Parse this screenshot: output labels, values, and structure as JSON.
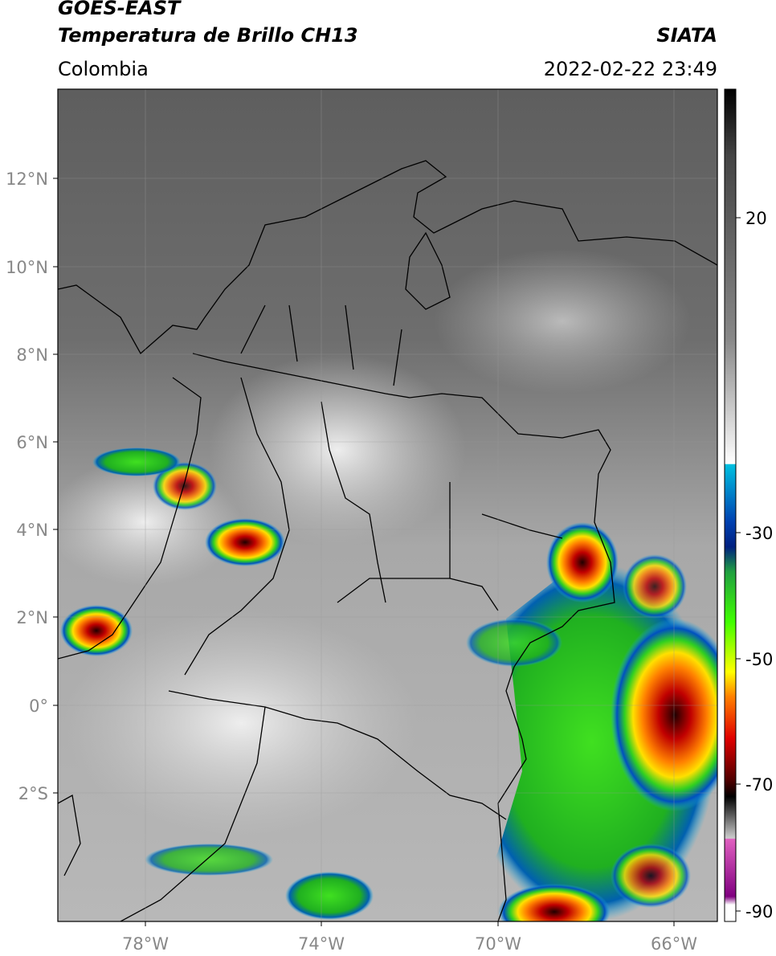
{
  "header": {
    "title_line1": "GOES-EAST",
    "title_line2": "Temperatura de Brillo CH13",
    "source": "SIATA",
    "region": "Colombia",
    "datetime": "2022-02-22 23:49"
  },
  "map": {
    "lat_labels": [
      "12°N",
      "10°N",
      "8°N",
      "6°N",
      "4°N",
      "2°N",
      "0°",
      "2°S"
    ],
    "lon_labels": [
      "78°W",
      "74°W",
      "70°W",
      "66°W"
    ]
  },
  "colorbar": {
    "ticks": [
      20,
      -30,
      -50,
      -70,
      -90
    ]
  }
}
